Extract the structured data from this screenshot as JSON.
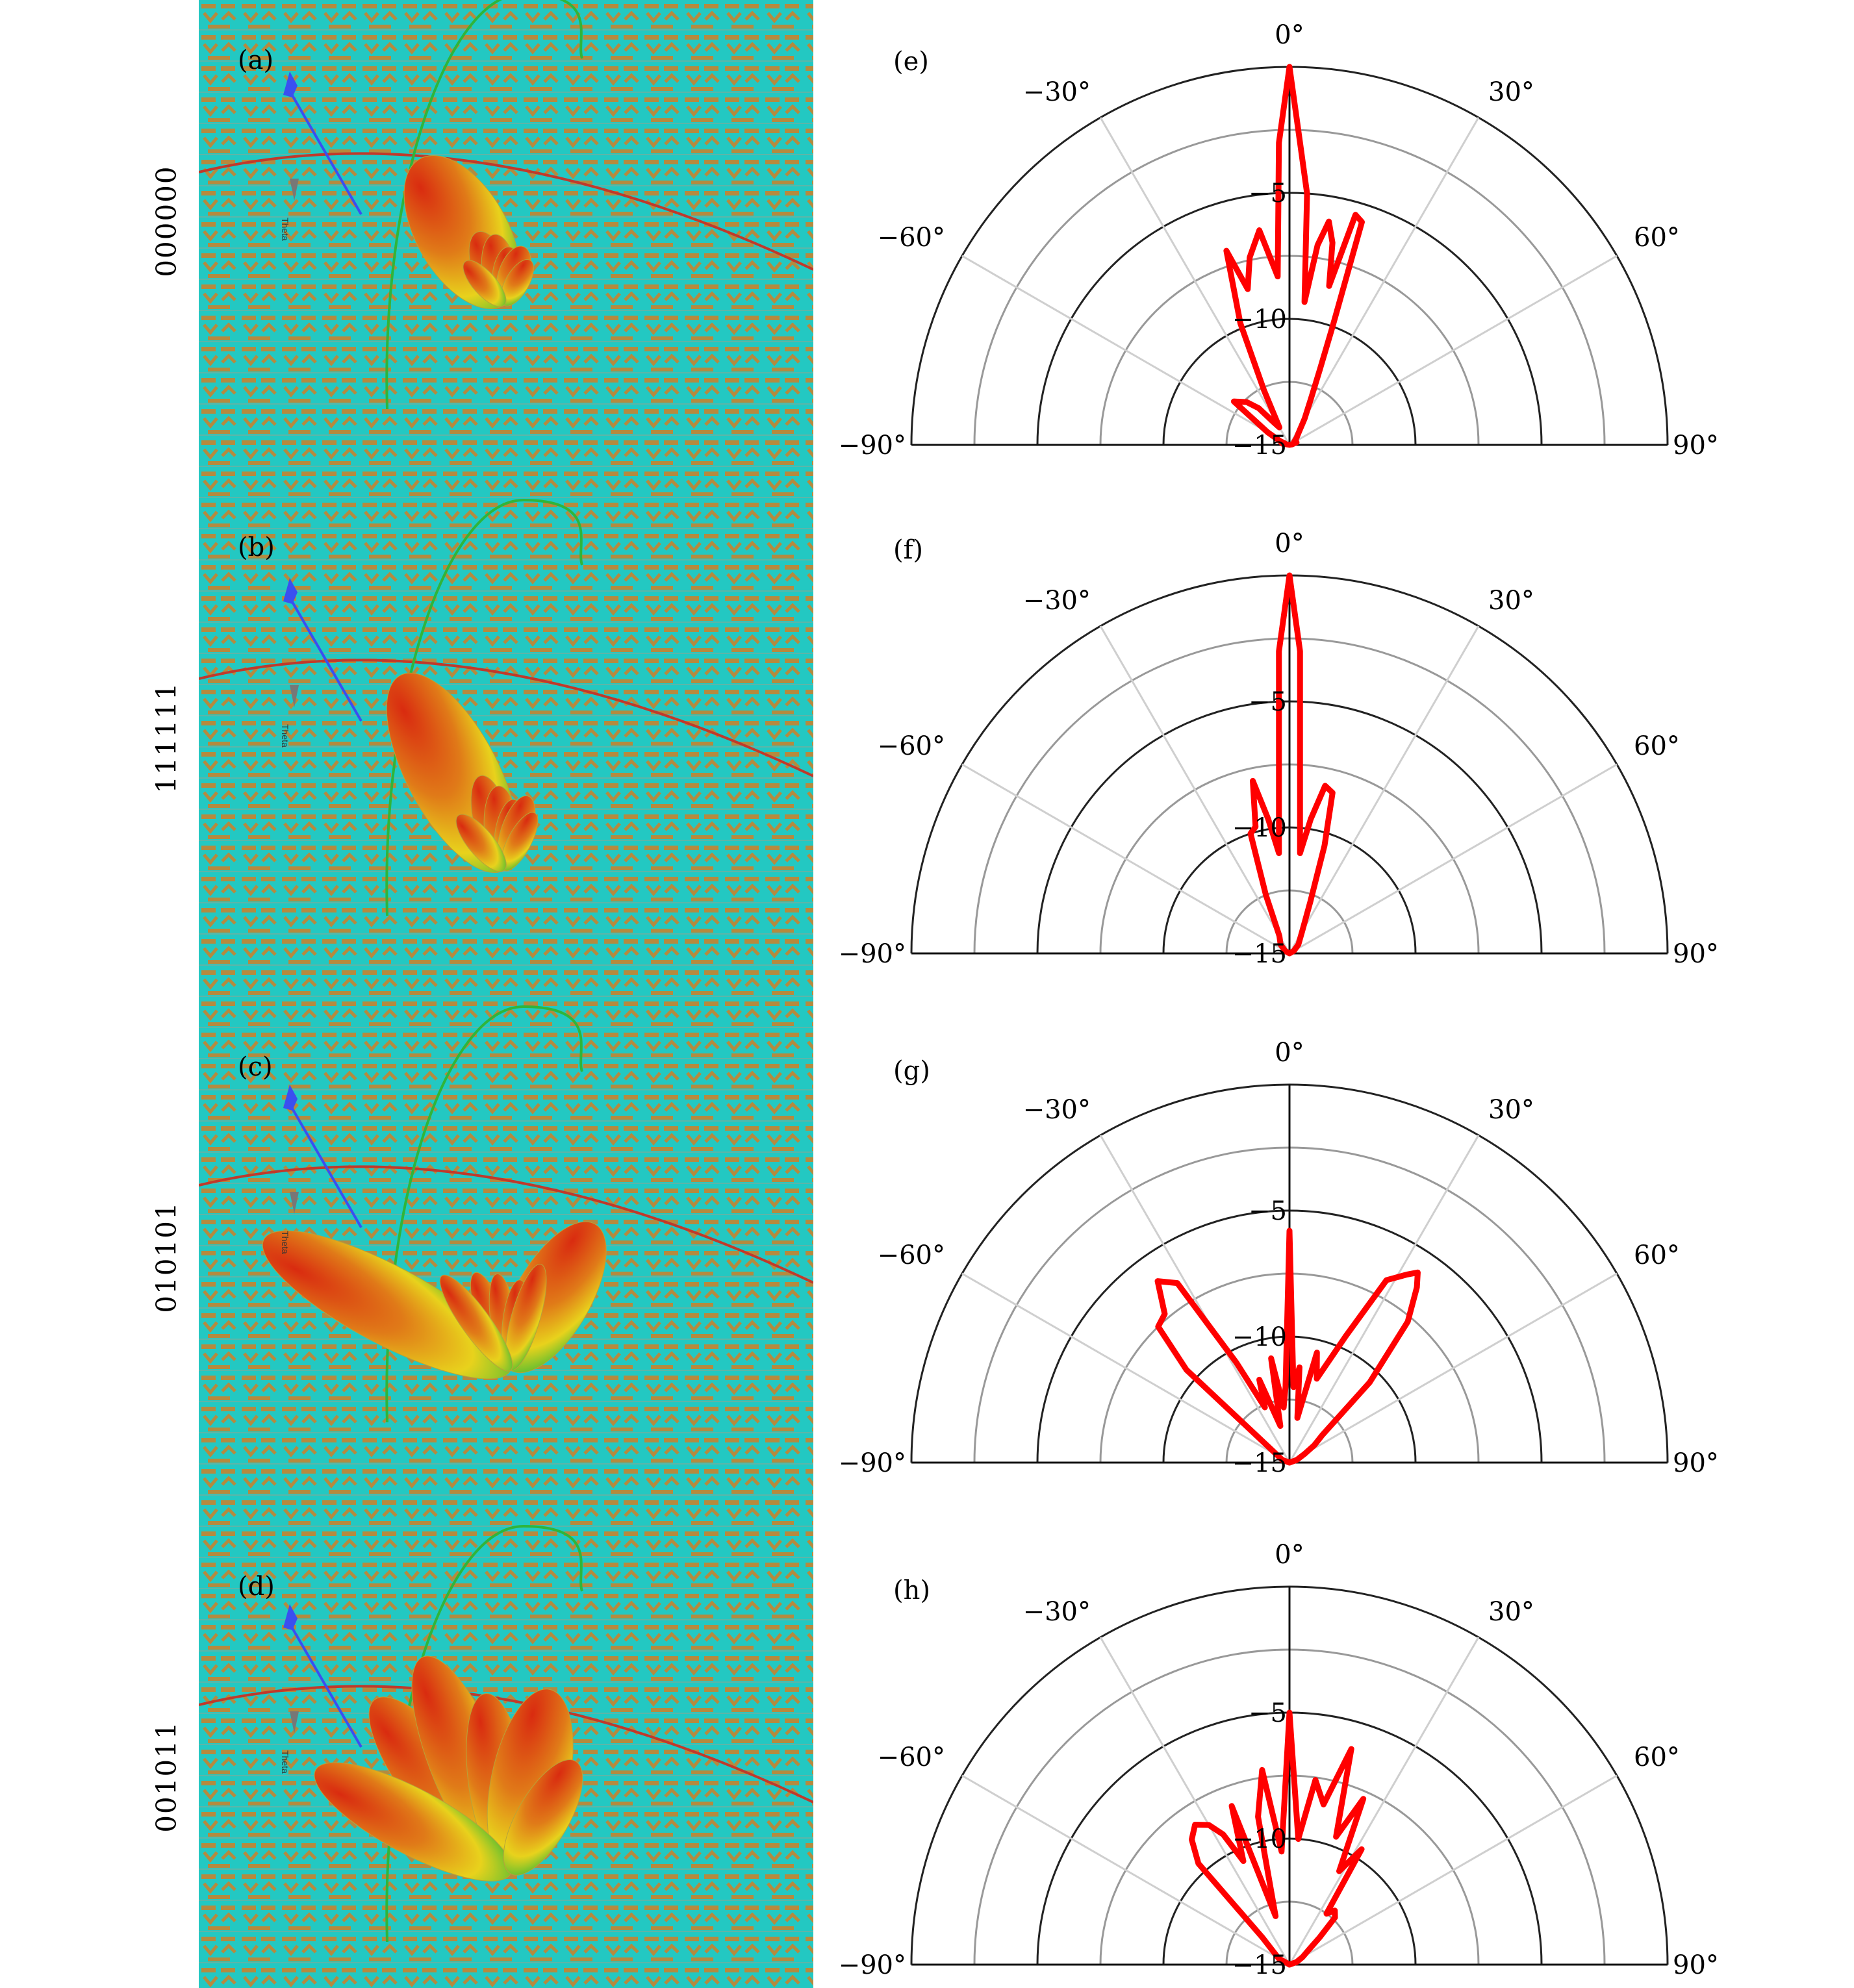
{
  "panels": [
    {
      "tag": "(a)",
      "code": "000000",
      "axis_label": "Theta"
    },
    {
      "tag": "(b)",
      "code": "111111",
      "axis_label": "Theta"
    },
    {
      "tag": "(c)",
      "code": "010101",
      "axis_label": "Theta"
    },
    {
      "tag": "(d)",
      "code": "001011",
      "axis_label": "Theta"
    }
  ],
  "colors": {
    "background": "#23c8c2",
    "metasurface": "#b58a3e",
    "lobe_hot": "#d92b10",
    "lobe_mid": "#e8d21c",
    "lobe_cold": "#39b935",
    "arc": "#c0392b",
    "axis_z": "#3a4ff0",
    "axis_theta": "#777777",
    "trace": "#ff0000"
  },
  "chart_data": [
    {
      "type": "polar",
      "tag": "(e)",
      "theta_range_deg": [
        -90,
        90
      ],
      "r_range_db": [
        -15,
        0
      ],
      "angle_ticks": [
        "-90°",
        "-60°",
        "-30°",
        "0°",
        "30°",
        "60°",
        "90°"
      ],
      "radial_ticks": [
        "-5",
        "-10",
        "-15"
      ],
      "series": [
        {
          "theta": [
            -90,
            -80,
            -72,
            -68,
            -60,
            -52,
            -45,
            -40,
            -35,
            -30,
            -25,
            -22,
            -18,
            -15,
            -12,
            -8,
            -4,
            -2,
            0,
            2,
            4,
            6,
            8,
            10,
            12,
            14,
            16,
            18,
            20,
            22,
            25,
            30,
            35,
            40,
            45,
            50,
            60,
            70,
            80,
            90
          ],
          "r": [
            -15,
            -14.7,
            -14.8,
            -14.6,
            -14,
            -12.2,
            -12.6,
            -13.1,
            -13.9,
            -14.2,
            -12.6,
            -9.8,
            -6.9,
            -8.6,
            -7.4,
            -6.4,
            -8.3,
            -3,
            0,
            -3,
            -5,
            -9.3,
            -7,
            -6,
            -6.8,
            -8.5,
            -5.5,
            -5.7,
            -10,
            -11.8,
            -13,
            -13.8,
            -14.3,
            -14.5,
            -14.6,
            -14.7,
            -14.8,
            -14.7,
            -14.9,
            -15
          ]
        }
      ]
    },
    {
      "type": "polar",
      "tag": "(f)",
      "theta_range_deg": [
        -90,
        90
      ],
      "r_range_db": [
        -15,
        0
      ],
      "angle_ticks": [
        "-90°",
        "-60°",
        "-30°",
        "0°",
        "30°",
        "60°",
        "90°"
      ],
      "radial_ticks": [
        "-5",
        "-10",
        "-15"
      ],
      "series": [
        {
          "theta": [
            -90,
            -60,
            -45,
            -30,
            -22,
            -18,
            -15,
            -12,
            -9,
            -6,
            -4,
            -2,
            0,
            2,
            4,
            6,
            9,
            12,
            15,
            18,
            22,
            30,
            45,
            60,
            90
          ],
          "r": [
            -15,
            -14.8,
            -14.5,
            -14.2,
            -12.5,
            -10,
            -9.8,
            -8,
            -9.6,
            -11,
            -9,
            -3,
            0,
            -3,
            -9,
            -11,
            -9.6,
            -8.2,
            -8.4,
            -10.5,
            -12.8,
            -14,
            -14.5,
            -14.8,
            -15
          ]
        }
      ]
    },
    {
      "type": "polar",
      "tag": "(g)",
      "theta_range_deg": [
        -90,
        90
      ],
      "r_range_db": [
        -15,
        0
      ],
      "angle_ticks": [
        "-90°",
        "-60°",
        "-30°",
        "0°",
        "30°",
        "60°",
        "90°"
      ],
      "radial_ticks": [
        "-5",
        "-10",
        "-15"
      ],
      "series": [
        {
          "theta": [
            -90,
            -70,
            -55,
            -48,
            -44,
            -40,
            -36,
            -32,
            -28,
            -24,
            -20,
            -14,
            -10,
            -6,
            -3,
            0,
            3,
            6,
            10,
            14,
            18,
            24,
            28,
            32,
            34,
            36,
            40,
            45,
            50,
            55,
            60,
            70,
            90
          ],
          "r": [
            -15,
            -14.7,
            -14.2,
            -9.5,
            -7.5,
            -7.3,
            -6.1,
            -6.6,
            -10.5,
            -12.6,
            -11.5,
            -13.5,
            -10.8,
            -12.8,
            -12,
            -5.8,
            -12,
            -11.2,
            -13.2,
            -10.5,
            -11.5,
            -9.5,
            -6.8,
            -6.2,
            -5.9,
            -6.4,
            -7.7,
            -10.5,
            -13.3,
            -13.8,
            -14.3,
            -14.7,
            -15
          ]
        }
      ]
    },
    {
      "type": "polar",
      "tag": "(h)",
      "theta_range_deg": [
        -90,
        90
      ],
      "r_range_db": [
        -15,
        0
      ],
      "angle_ticks": [
        "-90°",
        "-60°",
        "-30°",
        "0°",
        "30°",
        "60°",
        "90°"
      ],
      "radial_ticks": [
        "-5",
        "-10",
        "-15"
      ],
      "series": [
        {
          "theta": [
            -90,
            -60,
            -45,
            -42,
            -38,
            -34,
            -30,
            -27,
            -24,
            -20,
            -16,
            -12,
            -8,
            -4,
            0,
            4,
            8,
            12,
            16,
            20,
            24,
            28,
            32,
            36,
            40,
            44,
            48,
            52,
            60,
            70,
            90
          ],
          "r": [
            -15,
            -14.5,
            -13.5,
            -9.6,
            -8.7,
            -8.3,
            -8.6,
            -9.2,
            -10.5,
            -8.3,
            -13,
            -9,
            -7.2,
            -10.5,
            -5,
            -10,
            -7.6,
            -8.5,
            -6.1,
            -9.6,
            -7.8,
            -10.8,
            -9.6,
            -12.5,
            -12.2,
            -12.4,
            -13.4,
            -14,
            -14.4,
            -14.7,
            -15
          ]
        }
      ]
    }
  ]
}
